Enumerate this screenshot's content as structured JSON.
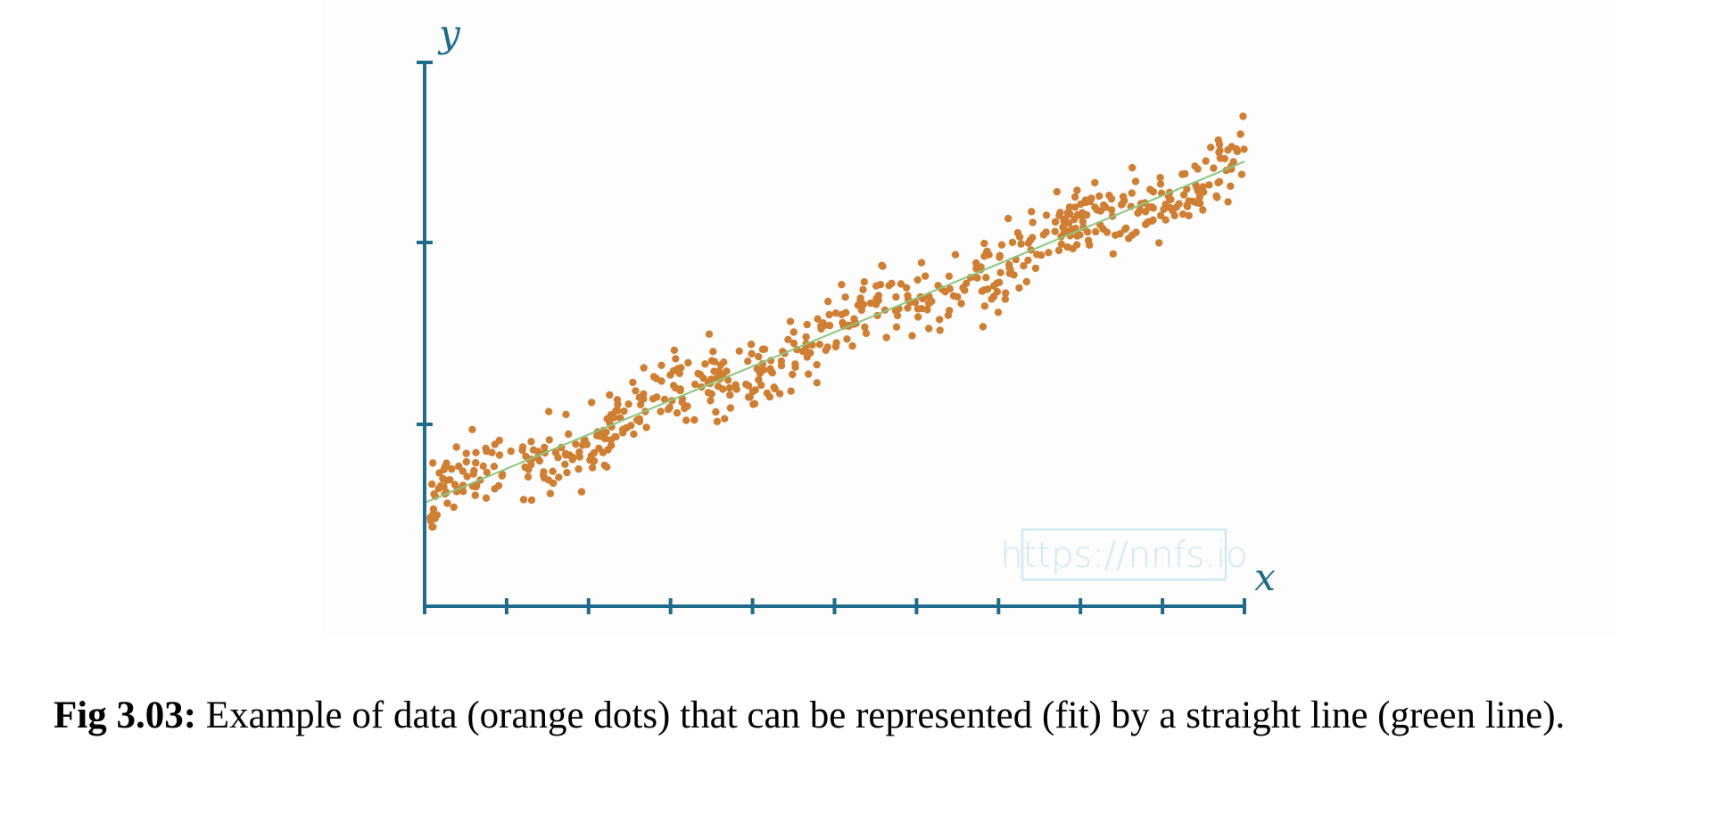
{
  "colors": {
    "axis": "#1f6b8c",
    "points": "#cf7f33",
    "fit_line": "#8bc780",
    "watermark": "#cfe8f1"
  },
  "chart_data": {
    "type": "scatter",
    "title": "",
    "xlabel": "x",
    "ylabel": "y",
    "xlim": [
      0,
      1
    ],
    "ylim": [
      0,
      1
    ],
    "x_ticks": 10,
    "y_ticks": 3,
    "tick_labels": false,
    "grid": false,
    "legend": "none",
    "series": [
      {
        "kind": "points",
        "count": 600,
        "x_range": [
          0,
          1
        ],
        "trend": {
          "intercept": 0.2,
          "slope": 0.66
        },
        "spread": 0.06,
        "y_range": [
          0.0,
          1.0
        ]
      },
      {
        "kind": "fit-line",
        "x": [
          0,
          1
        ],
        "y": [
          0.2,
          0.86
        ]
      }
    ]
  },
  "watermark": {
    "text": "https://nnfs.io"
  },
  "caption": {
    "label": "Fig 3.03:",
    "text": " Example of data (orange dots) that can be represented (fit) by a straight line (green line)."
  }
}
